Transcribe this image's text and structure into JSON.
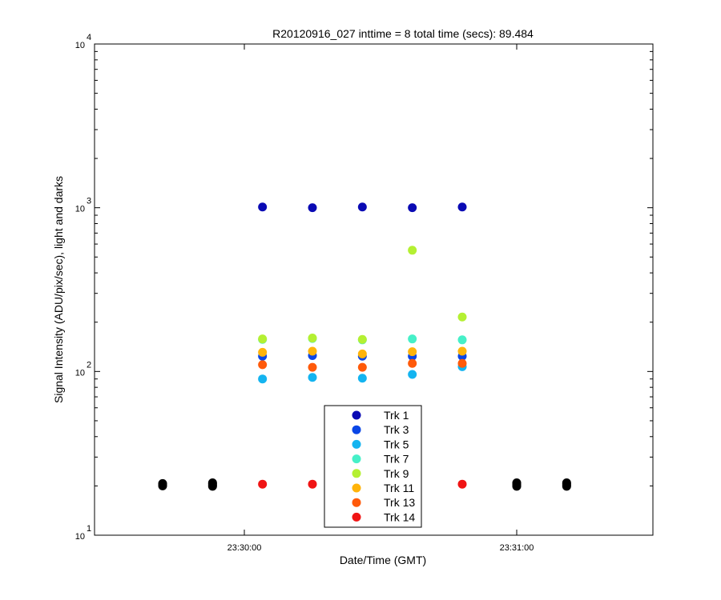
{
  "chart_data": {
    "type": "scatter",
    "title": "R20120916_027 inttime = 8 total time (secs): 89.484",
    "xlabel": "Date/Time (GMT)",
    "ylabel": "Signal Intensity (ADU/pix/sec), light and darks",
    "xlim": [
      "23:29:27",
      "23:31:30"
    ],
    "ylim": [
      10,
      10000
    ],
    "yscale": "log",
    "ytick_values": [
      10,
      100,
      1000,
      10000
    ],
    "ytick_labels": [
      {
        "base": "10",
        "exp": "1"
      },
      {
        "base": "10",
        "exp": "2"
      },
      {
        "base": "10",
        "exp": "3"
      },
      {
        "base": "10",
        "exp": "4"
      }
    ],
    "xticks": [
      "23:30:00",
      "23:31:00"
    ],
    "grid": false,
    "legend_position": "bottom-center",
    "series": [
      {
        "name": "Trk 1",
        "color": "#0a0ab4",
        "x": [
          "23:30:04",
          "23:30:15",
          "23:30:26",
          "23:30:37",
          "23:30:48"
        ],
        "y": [
          1010,
          1000,
          1010,
          1000,
          1010
        ]
      },
      {
        "name": "Trk 3",
        "color": "#0a46e6",
        "x": [
          "23:30:04",
          "23:30:15",
          "23:30:26",
          "23:30:37",
          "23:30:48"
        ],
        "y": [
          124,
          125,
          124,
          124,
          124
        ]
      },
      {
        "name": "Trk 5",
        "color": "#14b4f0",
        "x": [
          "23:30:04",
          "23:30:15",
          "23:30:26",
          "23:30:37",
          "23:30:48"
        ],
        "y": [
          90,
          92,
          91,
          96,
          107
        ]
      },
      {
        "name": "Trk 7",
        "color": "#46f0c8",
        "x": [
          "23:30:04",
          "23:30:15",
          "23:30:26",
          "23:30:37",
          "23:30:48"
        ],
        "y": [
          157,
          159,
          156,
          158,
          156
        ]
      },
      {
        "name": "Trk 9",
        "color": "#b4f032",
        "x": [
          "23:30:04",
          "23:30:15",
          "23:30:26",
          "23:30:37",
          "23:30:48"
        ],
        "y": [
          158,
          160,
          157,
          550,
          215
        ]
      },
      {
        "name": "Trk 11",
        "color": "#ffb40a",
        "x": [
          "23:30:04",
          "23:30:15",
          "23:30:26",
          "23:30:37",
          "23:30:48"
        ],
        "y": [
          131,
          133,
          128,
          132,
          133
        ]
      },
      {
        "name": "Trk 13",
        "color": "#ff5a0a",
        "x": [
          "23:30:04",
          "23:30:15",
          "23:30:26",
          "23:30:37",
          "23:30:48"
        ],
        "y": [
          110,
          106,
          106,
          112,
          112
        ]
      },
      {
        "name": "Trk 14",
        "color": "#f01414",
        "x": [
          "23:30:04",
          "23:30:15",
          "23:30:48"
        ],
        "y": [
          20.5,
          20.5,
          20.5
        ]
      }
    ],
    "dark_points": {
      "color": "#000000",
      "x": [
        "23:29:42",
        "23:29:42",
        "23:29:42",
        "23:29:53",
        "23:29:53",
        "23:29:53",
        "23:29:53",
        "23:31:00",
        "23:31:00",
        "23:31:00",
        "23:31:00",
        "23:31:11",
        "23:31:11",
        "23:31:11",
        "23:31:11"
      ],
      "y": [
        20.0,
        20.3,
        20.7,
        19.9,
        20.2,
        20.6,
        20.9,
        19.9,
        20.2,
        20.6,
        20.9,
        19.9,
        20.2,
        20.6,
        20.9
      ]
    }
  }
}
